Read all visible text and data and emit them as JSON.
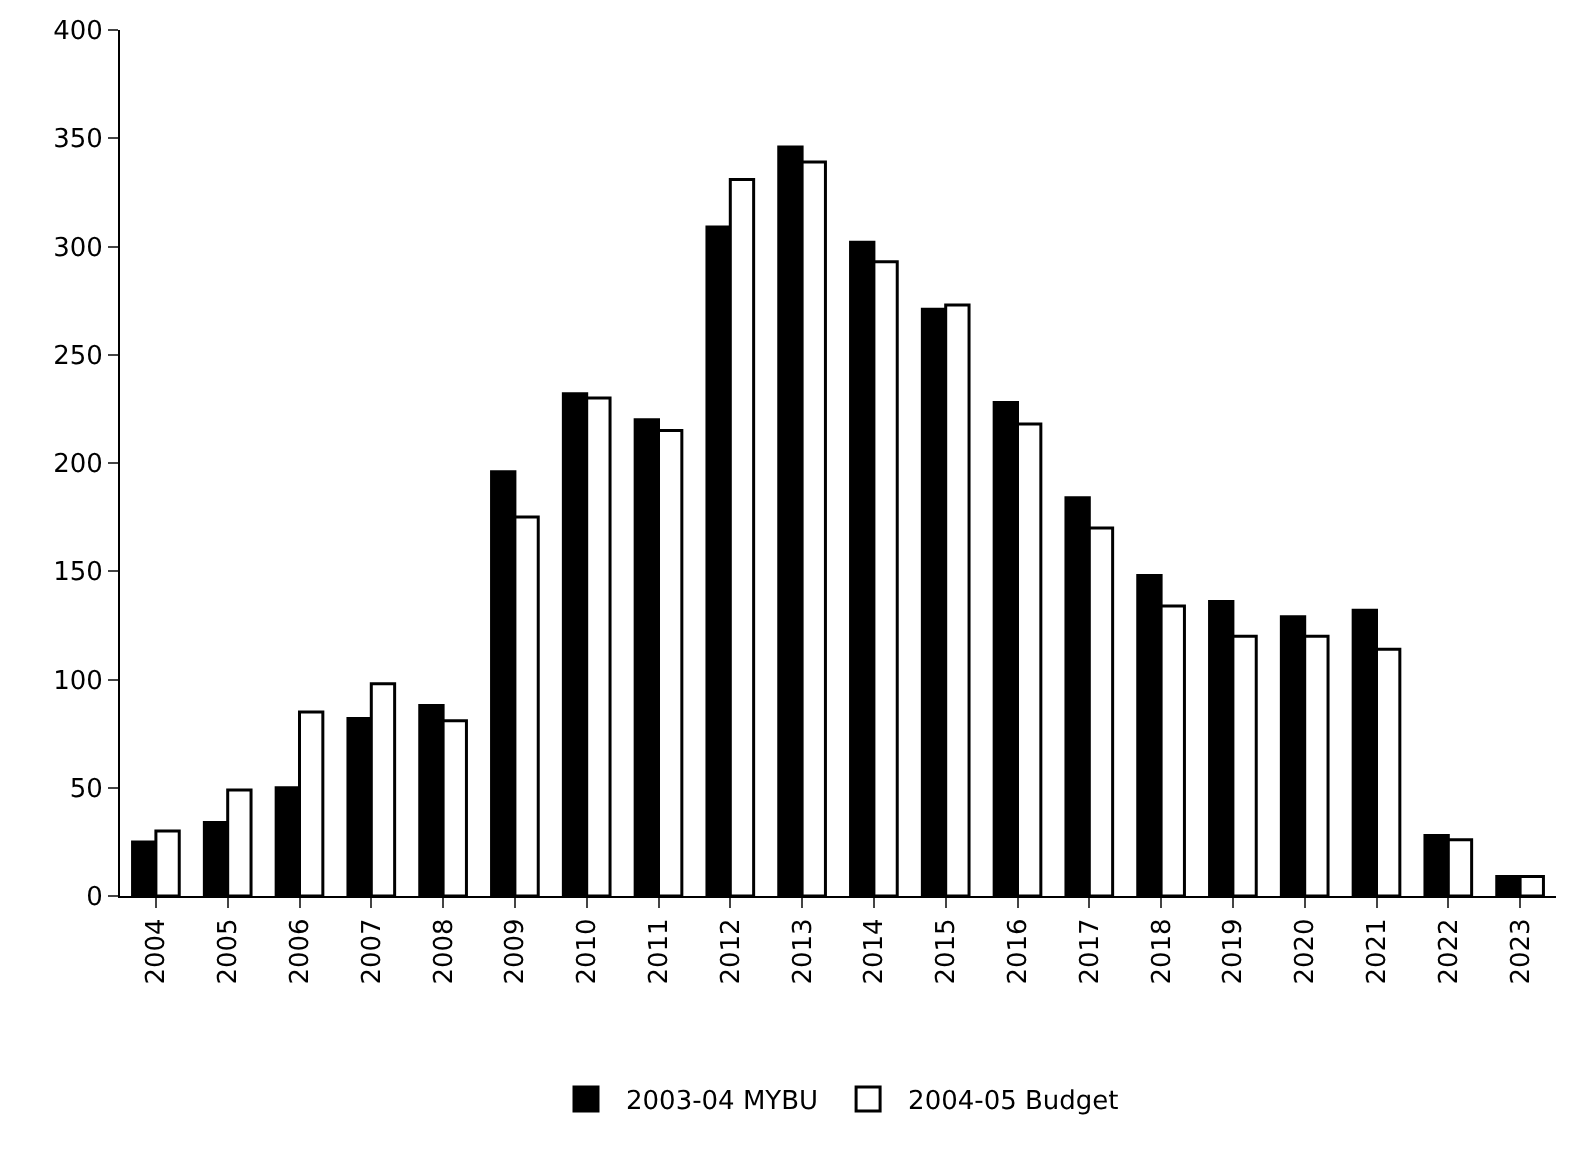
{
  "chart_data": {
    "type": "bar",
    "categories": [
      "2004",
      "2005",
      "2006",
      "2007",
      "2008",
      "2009",
      "2010",
      "2011",
      "2012",
      "2013",
      "2014",
      "2015",
      "2016",
      "2017",
      "2018",
      "2019",
      "2020",
      "2021",
      "2022",
      "2023"
    ],
    "series": [
      {
        "name": "2003-04 MYBU",
        "color": "#000000",
        "values": [
          25,
          34,
          50,
          82,
          88,
          196,
          232,
          220,
          309,
          346,
          302,
          271,
          228,
          184,
          148,
          136,
          129,
          132,
          28,
          9
        ]
      },
      {
        "name": "2004-05 Budget",
        "color": "#ffffff",
        "values": [
          30,
          49,
          85,
          98,
          81,
          175,
          230,
          215,
          331,
          339,
          293,
          273,
          218,
          170,
          134,
          120,
          120,
          114,
          26,
          9
        ]
      }
    ],
    "ylim": [
      0,
      400
    ],
    "yticks": [
      0,
      50,
      100,
      150,
      200,
      250,
      300,
      350,
      400
    ],
    "grid": false,
    "legend": "bottom"
  }
}
